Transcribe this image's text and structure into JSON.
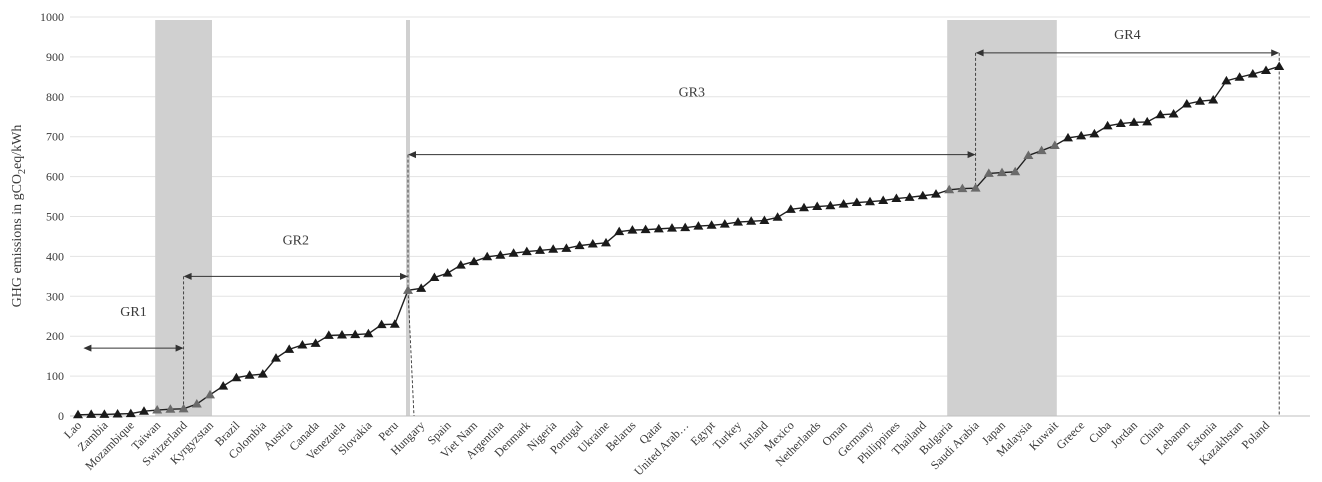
{
  "chart_data": {
    "type": "line",
    "title": "",
    "xlabel": "",
    "ylabel": "GHG emissions in gCO₂eq/kWh",
    "ylim": [
      0,
      1000
    ],
    "yticks": [
      0,
      100,
      200,
      300,
      400,
      500,
      600,
      700,
      800,
      900,
      1000
    ],
    "grid": true,
    "legend": "none",
    "marker": "triangle",
    "categories_labeled": [
      "Lao",
      "Zambia",
      "Mozambique",
      "Taiwan",
      "Switzerland",
      "Kyrgyzstan",
      "Brazil",
      "Colombia",
      "Austria",
      "Canada",
      "Venezuela",
      "Slovakia",
      "Peru",
      "Hungary",
      "Spain",
      "Viet Nam",
      "Argentina",
      "Denmark",
      "Nigeria",
      "Portugal",
      "Ukraine",
      "Belarus",
      "Qatar",
      "United Arab…",
      "Egypt",
      "Turkey",
      "Ireland",
      "Mexico",
      "Netherlands",
      "Oman",
      "Germany",
      "Philippines",
      "Thailand",
      "Bulgaria",
      "Saudi Arabia",
      "Japan",
      "Malaysia",
      "Kuwait",
      "Greece",
      "Cuba",
      "Jordan",
      "China",
      "Lebanon",
      "Estonia",
      "Kazakhstan",
      "Poland"
    ],
    "labeled_index": [
      0,
      2,
      4,
      6,
      8,
      10,
      12,
      14,
      16,
      18,
      20,
      22,
      24,
      26,
      28,
      30,
      32,
      34,
      36,
      38,
      40,
      42,
      44,
      46,
      48,
      50,
      52,
      54,
      56,
      58,
      60,
      62,
      64,
      66,
      68,
      70,
      72,
      74,
      76,
      78,
      80,
      82,
      84,
      86,
      88,
      90
    ],
    "values": [
      3,
      4,
      4,
      5,
      6,
      12,
      15,
      17,
      18,
      30,
      53,
      75,
      96,
      102,
      105,
      145,
      167,
      178,
      182,
      202,
      203,
      204,
      206,
      229,
      230,
      315,
      320,
      347,
      358,
      378,
      387,
      399,
      403,
      408,
      412,
      415,
      418,
      420,
      427,
      431,
      434,
      462,
      466,
      467,
      469,
      471,
      472,
      476,
      478,
      481,
      486,
      488,
      490,
      498,
      518,
      522,
      525,
      527,
      531,
      535,
      537,
      540,
      545,
      548,
      552,
      556,
      567,
      570,
      571,
      608,
      610,
      612,
      653,
      665,
      678,
      697,
      702,
      707,
      727,
      733,
      736,
      737,
      755,
      757,
      782,
      789,
      792,
      840,
      849,
      857,
      866,
      876
    ],
    "gray_marker_index": [
      6,
      7,
      8,
      9,
      10,
      25,
      66,
      67,
      68,
      69,
      70,
      71,
      72,
      73,
      74
    ],
    "shaded_ranges": [
      [
        6,
        10
      ],
      [
        25,
        25
      ],
      [
        66,
        74
      ]
    ],
    "groups": [
      {
        "label": "GR1",
        "from": -0.5,
        "to": 8,
        "y": 170
      },
      {
        "label": "GR2",
        "from": 8,
        "to": 25,
        "y": 350
      },
      {
        "label": "GR3",
        "from": 25,
        "to": 68,
        "y": 655
      },
      {
        "label": "GR4",
        "from": 68,
        "to": 91,
        "y": 910
      }
    ],
    "dividers": [
      8,
      25,
      68,
      91
    ]
  }
}
